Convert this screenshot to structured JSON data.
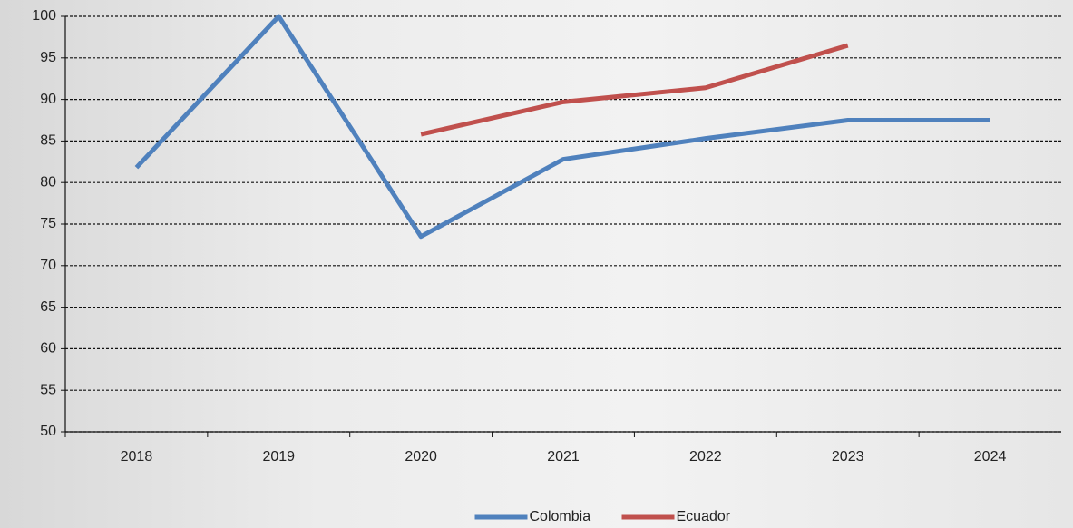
{
  "chart_data": {
    "type": "line",
    "categories": [
      "2018",
      "2019",
      "2020",
      "2021",
      "2022",
      "2023",
      "2024"
    ],
    "series": [
      {
        "name": "Colombia",
        "color": "#4f81bd",
        "values": [
          81.8,
          100,
          73.5,
          82.8,
          85.3,
          87.5,
          87.5
        ]
      },
      {
        "name": "Ecuador",
        "color": "#c0504d",
        "values": [
          null,
          null,
          85.8,
          89.7,
          91.4,
          96.5,
          null
        ]
      }
    ],
    "ylim": [
      50,
      100
    ],
    "yticks": [
      50,
      55,
      60,
      65,
      70,
      75,
      80,
      85,
      90,
      95,
      100
    ],
    "grid": true,
    "legend": "bottom"
  }
}
